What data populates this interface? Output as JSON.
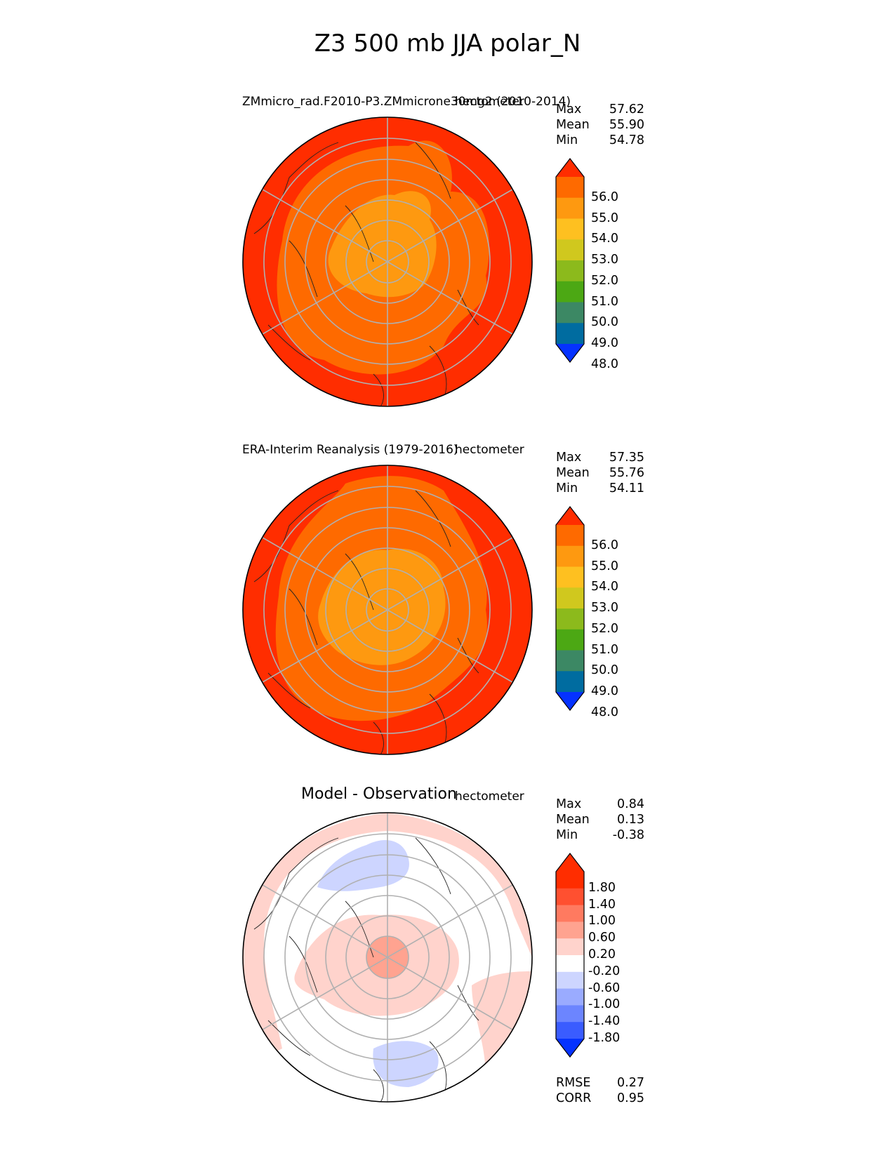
{
  "figure": {
    "title": "Z3 500 mb JJA polar_N"
  },
  "colors": {
    "abs_levels": [
      "#0532ff",
      "#006ca0",
      "#3c8864",
      "#4ca814",
      "#8cba1c",
      "#d0c81e",
      "#fec020",
      "#fe9910",
      "#fe6a00",
      "#ff2d00"
    ],
    "diff_levels": [
      "#0532ff",
      "#3a5cff",
      "#6c85ff",
      "#9aabff",
      "#cdd5ff",
      "#ffffff",
      "#ffd3cc",
      "#ffa390",
      "#ff7a60",
      "#ff5030",
      "#ff2d00"
    ],
    "grid": "#b0b0b0",
    "coast": "#222222"
  },
  "chart_data": [
    {
      "type": "heatmap",
      "projection": "north-polar-stereographic",
      "title_left": "ZMmicro_rad.F2010-P3.ZMmicrone30mg2 (2010-2014)",
      "title_right": "hectometer",
      "units": "hectometer",
      "stats": {
        "Max": "57.62",
        "Mean": "55.90",
        "Min": "54.78"
      },
      "colorbar": {
        "ticks": [
          "56.0",
          "55.0",
          "54.0",
          "53.0",
          "52.0",
          "51.0",
          "50.0",
          "49.0",
          "48.0"
        ],
        "extend": "both"
      },
      "field_levels": [
        {
          "value_range": [
            56,
            58
          ],
          "description": "outer ring"
        },
        {
          "value_range": [
            55,
            56
          ],
          "description": "middle band"
        },
        {
          "value_range": [
            54,
            55
          ],
          "description": "central pole region"
        }
      ]
    },
    {
      "type": "heatmap",
      "projection": "north-polar-stereographic",
      "title_left": "ERA-Interim Reanalysis (1979-2016)",
      "title_right": "hectometer",
      "units": "hectometer",
      "stats": {
        "Max": "57.35",
        "Mean": "55.76",
        "Min": "54.11"
      },
      "colorbar": {
        "ticks": [
          "56.0",
          "55.0",
          "54.0",
          "53.0",
          "52.0",
          "51.0",
          "50.0",
          "49.0",
          "48.0"
        ],
        "extend": "both"
      },
      "field_levels": [
        {
          "value_range": [
            56,
            58
          ],
          "description": "outer ring"
        },
        {
          "value_range": [
            55,
            56
          ],
          "description": "middle band"
        },
        {
          "value_range": [
            54,
            55
          ],
          "description": "central pole region"
        }
      ]
    },
    {
      "type": "heatmap",
      "projection": "north-polar-stereographic",
      "title_left": "Model - Observation",
      "title_right": "hectometer",
      "units": "hectometer",
      "stats": {
        "Max": "0.84",
        "Mean": "0.13",
        "Min": "-0.38"
      },
      "colorbar": {
        "ticks": [
          "1.80",
          "1.40",
          "1.00",
          "0.60",
          "0.20",
          "-0.20",
          "-0.60",
          "-1.00",
          "-1.40",
          "-1.80"
        ],
        "extend": "both"
      },
      "metrics": {
        "RMSE": "0.27",
        "CORR": "0.95"
      }
    }
  ]
}
